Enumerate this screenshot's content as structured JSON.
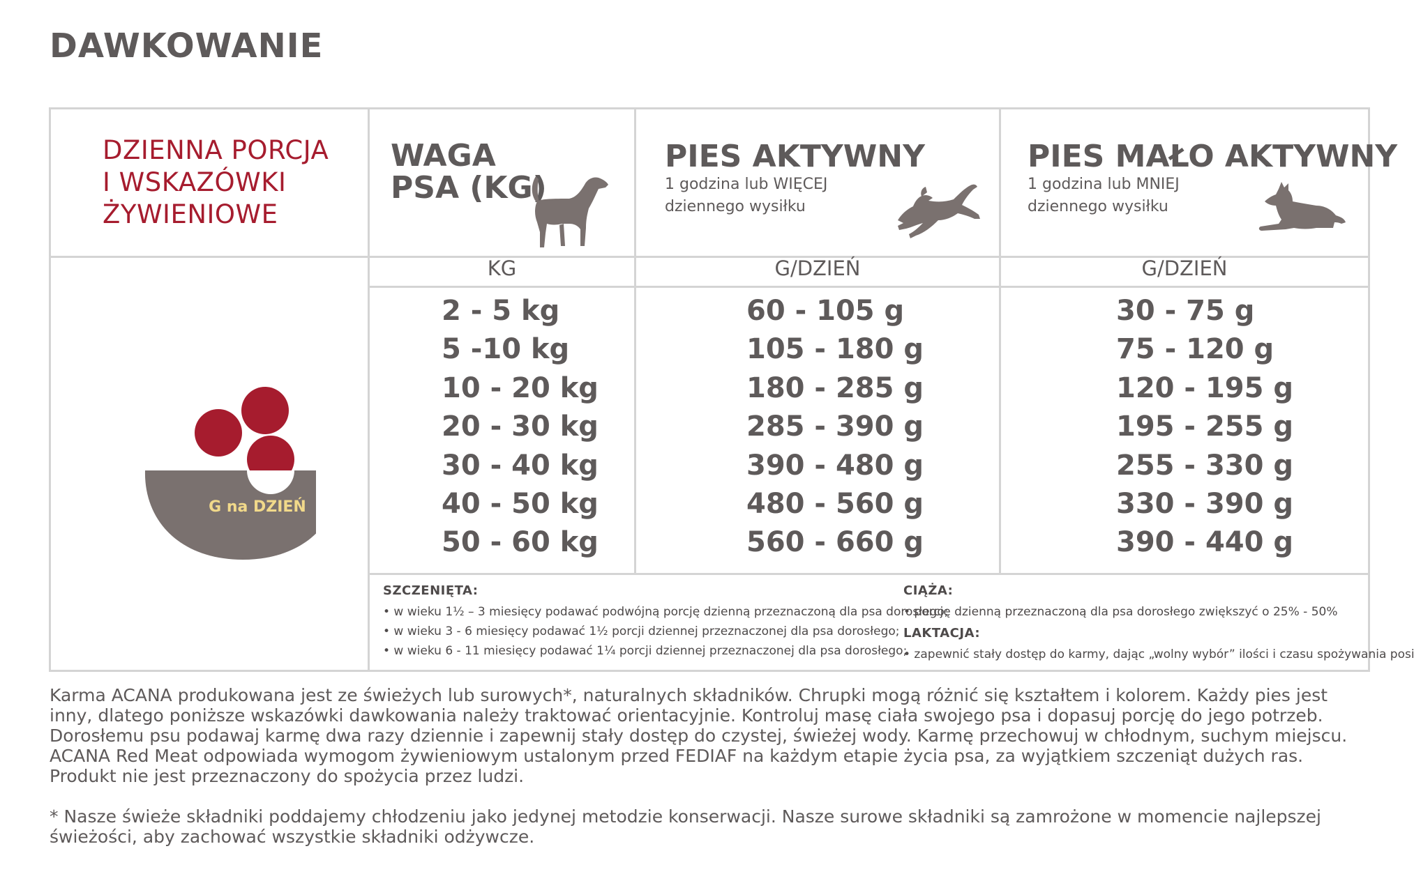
{
  "title": "DAWKOWANIE",
  "intro_title": [
    "DZIENNA PORCJA",
    "I WSKAZÓWKI",
    "ŻYWIENIOWE"
  ],
  "bowl_label": "G na DZIEŃ",
  "columns": {
    "weight": {
      "title_lines": [
        "WAGA",
        "PSA (KG)"
      ],
      "unit": "KG",
      "icon": "standing-dog-icon"
    },
    "active": {
      "title": "PIES AKTYWNY",
      "sub_lines": [
        "1 godzina lub WIĘCEJ",
        "dziennego wysiłku"
      ],
      "unit": "G/DZIEŃ",
      "icon": "running-dog-icon"
    },
    "inactive": {
      "title": "PIES MAŁO AKTYWNY",
      "sub_lines": [
        "1 godzina lub MNIEJ",
        "dziennego wysiłku"
      ],
      "unit": "G/DZIEŃ",
      "icon": "lying-dog-icon"
    }
  },
  "rows": [
    {
      "kg": "2 - 5 kg",
      "active": "60 - 105 g",
      "inactive": "30 - 75 g"
    },
    {
      "kg": "5 -10 kg",
      "active": "105 - 180 g",
      "inactive": "75 - 120 g"
    },
    {
      "kg": "10 - 20 kg",
      "active": "180 - 285 g",
      "inactive": "120 - 195 g"
    },
    {
      "kg": "20 - 30 kg",
      "active": "285 - 390 g",
      "inactive": "195 - 255 g"
    },
    {
      "kg": "30 - 40 kg",
      "active": "390 - 480 g",
      "inactive": "255 - 330 g"
    },
    {
      "kg": "40 - 50 kg",
      "active": "480 - 560 g",
      "inactive": "330 - 390 g"
    },
    {
      "kg": "50 - 60 kg",
      "active": "560 - 660 g",
      "inactive": "390 - 440 g"
    }
  ],
  "notes": {
    "puppies": {
      "heading": "SZCZENIĘTA:",
      "items": [
        "• w wieku 1½ – 3 miesięcy podawać podwójną porcję dzienną przeznaczoną dla psa dorosłego;",
        "• w wieku 3 - 6 miesięcy podawać 1½ porcji dziennej przeznaczonej dla psa dorosłego;",
        "• w wieku 6 - 11 miesięcy podawać 1¼ porcji dziennej przeznaczonej dla psa dorosłego;"
      ]
    },
    "pregnancy": {
      "heading": "CIĄŻA:",
      "items": [
        "• porcję dzienną przeznaczoną dla psa dorosłego zwiększyć o 25% - 50%"
      ]
    },
    "lactation": {
      "heading": "LAKTACJA:",
      "items": [
        "• zapewnić stały dostęp do karmy, dając „wolny wybór” ilości i czasu spożywania posiłków."
      ]
    }
  },
  "footer": {
    "paragraph": "Karma ACANA produkowana jest ze świeżych lub surowych*, naturalnych składników. Chrupki mogą różnić się kształtem i kolorem. Każdy pies jest inny, dlatego poniższe wskazówki dawkowania należy traktować orientacyjnie. Kontroluj masę ciała swojego psa i dopasuj porcję do jego potrzeb. Dorosłemu psu podawaj karmę dwa razy dziennie i zapewnij stały dostęp do czystej, świeżej wody. Karmę przechowuj w chłodnym, suchym miejscu. ACANA Red Meat odpowiada wymogom żywieniowym ustalonym przed FEDIAF na każdym etapie życia psa, za wyjątkiem szczeniąt dużych ras. Produkt nie jest przeznaczony do spożycia przez ludzi.",
    "footnote": "* Nasze świeże składniki poddajemy chłodzeniu jako jedynej metodzie konserwacji. Nasze surowe składniki są zamrożone w momencie najlepszej świeżości, aby zachować wszystkie składniki odżywcze."
  },
  "colors": {
    "accent_red": "#a61c2e",
    "text_gray": "#5e5a5a",
    "bowl_gray": "#7a716f",
    "border_gray": "#d4d4d4",
    "label_yellow": "#f1d98a"
  }
}
